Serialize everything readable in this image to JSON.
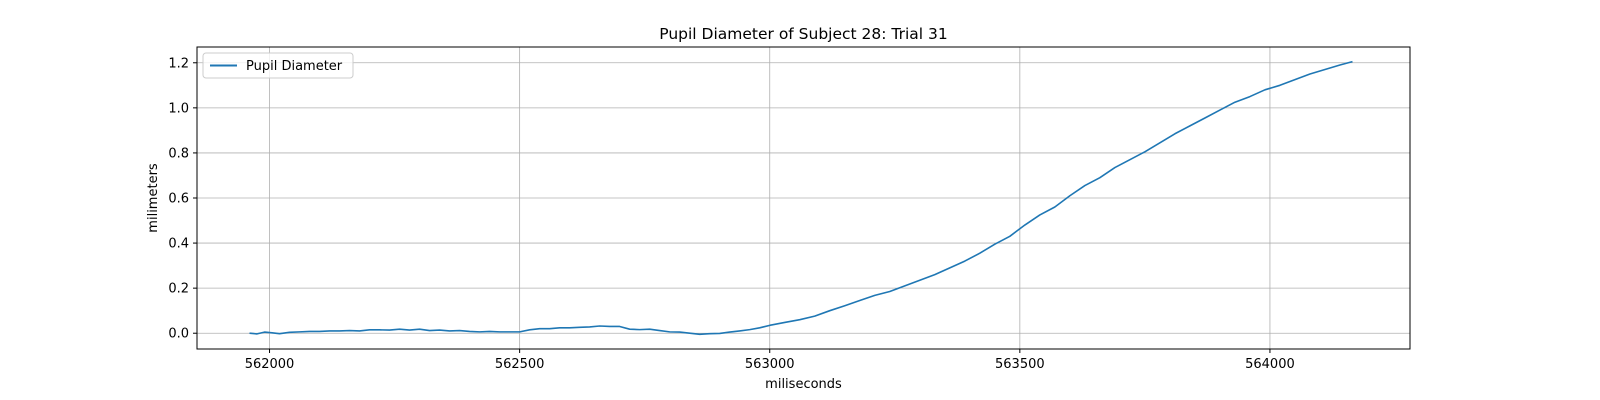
{
  "chart_data": {
    "type": "line",
    "title": "Pupil Diameter of Subject 28: Trial 31",
    "xlabel": "miliseconds",
    "ylabel": "milimeters",
    "xlim": [
      561855,
      564280
    ],
    "ylim": [
      -0.07,
      1.27
    ],
    "xticks": [
      562000,
      562500,
      563000,
      563500,
      564000
    ],
    "yticks": [
      0.0,
      0.2,
      0.4,
      0.6,
      0.8,
      1.0,
      1.2
    ],
    "ytick_labels": [
      "0.0",
      "0.2",
      "0.4",
      "0.6",
      "0.8",
      "1.0",
      "1.2"
    ],
    "grid": true,
    "legend": {
      "position": "top-left",
      "entries": [
        "Pupil Diameter"
      ]
    },
    "colors": {
      "series": "#1f77b4",
      "grid": "#b0b0b0"
    },
    "series": [
      {
        "name": "Pupil Diameter",
        "x": [
          561960,
          561975,
          561990,
          562005,
          562020,
          562040,
          562060,
          562080,
          562100,
          562120,
          562140,
          562160,
          562180,
          562200,
          562220,
          562240,
          562260,
          562280,
          562300,
          562320,
          562340,
          562360,
          562380,
          562400,
          562420,
          562440,
          562460,
          562480,
          562500,
          562520,
          562540,
          562560,
          562580,
          562600,
          562620,
          562640,
          562660,
          562680,
          562700,
          562720,
          562740,
          562760,
          562780,
          562800,
          562820,
          562840,
          562860,
          562880,
          562900,
          562920,
          562940,
          562960,
          562980,
          563000,
          563030,
          563060,
          563090,
          563120,
          563150,
          563180,
          563210,
          563240,
          563270,
          563300,
          563330,
          563360,
          563390,
          563420,
          563450,
          563480,
          563510,
          563540,
          563570,
          563600,
          563630,
          563660,
          563690,
          563720,
          563750,
          563780,
          563810,
          563840,
          563870,
          563900,
          563930,
          563960,
          563990,
          564020,
          564050,
          564080,
          564110,
          564140,
          564165
        ],
        "values": [
          0.0,
          -0.003,
          0.005,
          0.002,
          -0.002,
          0.004,
          0.006,
          0.008,
          0.008,
          0.01,
          0.01,
          0.012,
          0.01,
          0.015,
          0.015,
          0.014,
          0.018,
          0.014,
          0.018,
          0.012,
          0.014,
          0.01,
          0.012,
          0.008,
          0.006,
          0.008,
          0.006,
          0.006,
          0.006,
          0.015,
          0.02,
          0.02,
          0.024,
          0.024,
          0.026,
          0.028,
          0.032,
          0.03,
          0.03,
          0.018,
          0.016,
          0.018,
          0.012,
          0.006,
          0.005,
          0.0,
          -0.005,
          -0.002,
          -0.001,
          0.005,
          0.01,
          0.016,
          0.024,
          0.035,
          0.048,
          0.06,
          0.076,
          0.1,
          0.122,
          0.145,
          0.168,
          0.185,
          0.21,
          0.235,
          0.26,
          0.29,
          0.32,
          0.355,
          0.395,
          0.43,
          0.48,
          0.525,
          0.56,
          0.61,
          0.655,
          0.69,
          0.735,
          0.77,
          0.805,
          0.845,
          0.885,
          0.92,
          0.955,
          0.99,
          1.025,
          1.05,
          1.08,
          1.1,
          1.125,
          1.15,
          1.17,
          1.19,
          1.205
        ]
      }
    ]
  }
}
